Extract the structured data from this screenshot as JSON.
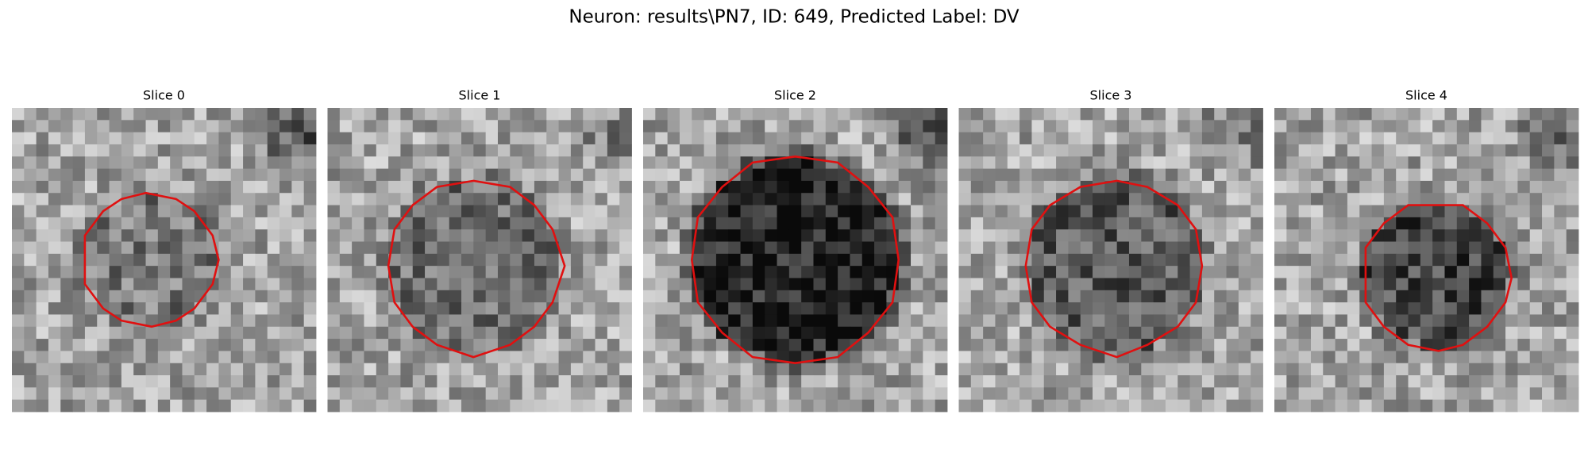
{
  "title": "Neuron: results\\PN7, ID: 649, Predicted Label: DV",
  "panels": [
    {
      "title": "Slice 0"
    },
    {
      "title": "Slice 1"
    },
    {
      "title": "Slice 2"
    },
    {
      "title": "Slice 3"
    },
    {
      "title": "Slice 4"
    }
  ]
}
